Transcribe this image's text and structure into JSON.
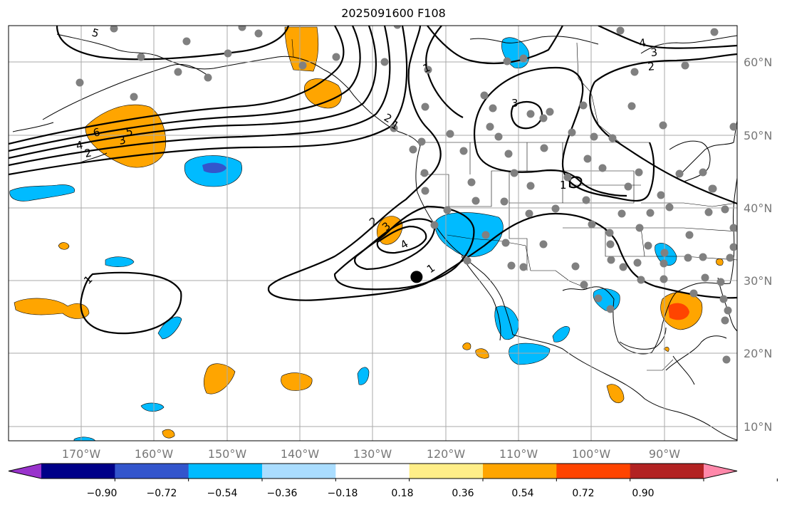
{
  "title": "2025091600 F108",
  "map": {
    "projection": "PlateCarree",
    "lon_range": [
      -180,
      -80
    ],
    "lat_range": [
      7.5,
      64.5
    ],
    "gridlines": true,
    "lon_labels": [
      "170°W",
      "160°W",
      "150°W",
      "140°W",
      "130°W",
      "120°W",
      "110°W",
      "100°W",
      "90°W"
    ],
    "lat_labels": [
      "10°N",
      "20°N",
      "30°N",
      "40°N",
      "50°N",
      "60°N"
    ]
  },
  "colorbar": {
    "extend": "both",
    "tick_labels": [
      "−0.90",
      "−0.72",
      "−0.54",
      "−0.36",
      "−0.18",
      "0.18",
      "0.36",
      "0.54",
      "0.72",
      "0.90"
    ],
    "colors": [
      "#9933cc",
      "#000088",
      "#3355cc",
      "#00bbff",
      "#aaddff",
      "#ffffff",
      "#ffee88",
      "#ffa500",
      "#ff4400",
      "#b22222",
      "#ff88aa"
    ]
  },
  "contour_labels": [
    "5",
    "4",
    "3",
    "2",
    "6",
    "5",
    "4",
    "3",
    "2",
    "1",
    "2",
    "3",
    "4",
    "1",
    "1",
    "3",
    "2",
    "1",
    "1"
  ],
  "marker": {
    "lon": -124,
    "lat": 30,
    "color": "#000000"
  }
}
